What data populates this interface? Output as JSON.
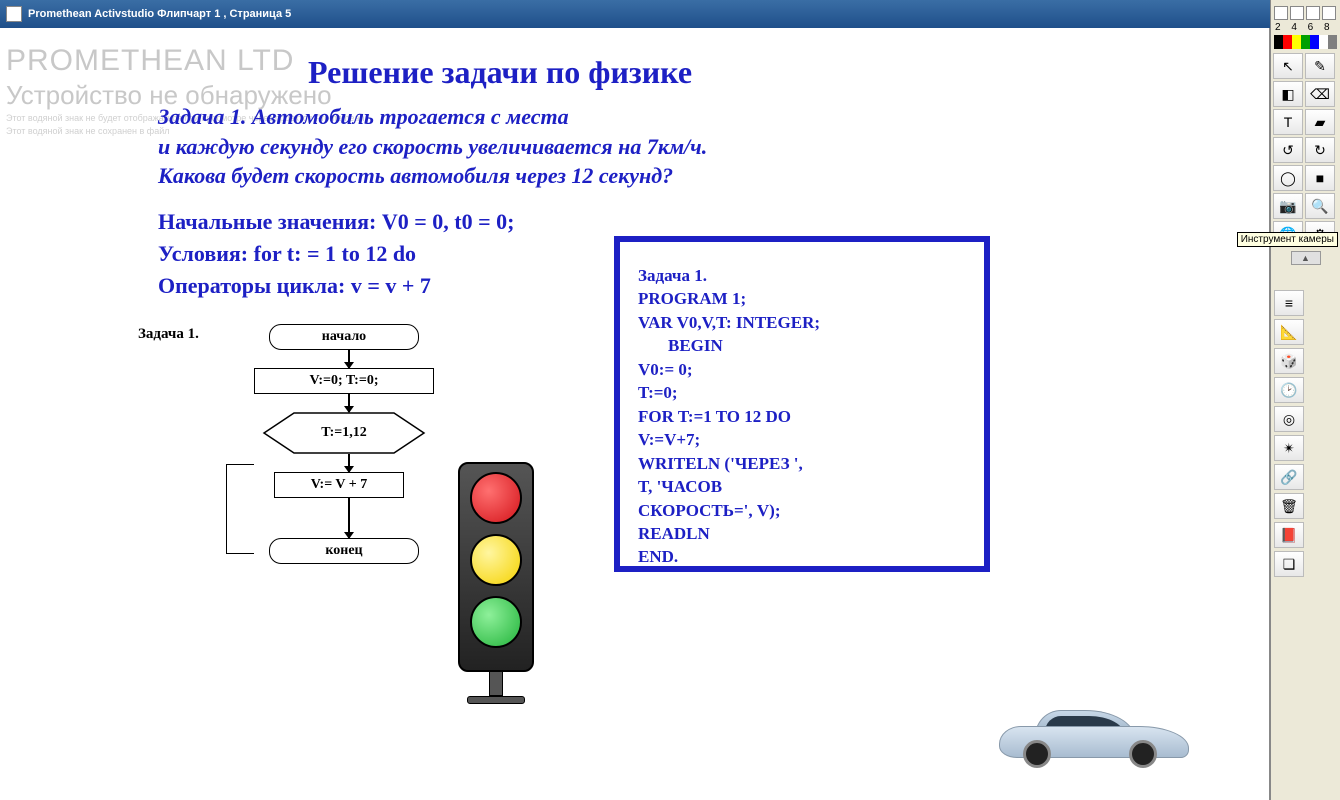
{
  "titlebar": {
    "text": "Promethean Activstudio   Флипчарт 1 ,  Страница 5"
  },
  "watermark": {
    "line1": "PROMETHEAN LTD",
    "line2": "Устройство не обнаружено",
    "line3": "Этот водяной знак не будет отображаться при просмотре через проектор Promethean",
    "line4": "Этот водяной знак не сохранен в файл"
  },
  "page": {
    "title": "Решение задачи по физике",
    "problem_l1": "Задача 1. Автомобиль трогается с места",
    "problem_l2": "и каждую секунду его скорость увеличивается на 7км/ч.",
    "problem_l3": "Какова будет скорость автомобиля через 12 секунд?",
    "defs_l1": "Начальные значения: V0 = 0, t0 = 0;",
    "defs_l2": "Условия: for t: = 1 to 12 do",
    "defs_l3": "Операторы цикла: v = v + 7",
    "task_label": "Задача 1."
  },
  "flowchart": {
    "start": "начало",
    "init": "V:=0; T:=0;",
    "cond": "T:=1,12",
    "body": "V:= V + 7",
    "end": "конец",
    "box_border": "#000000",
    "arrow_len": 18
  },
  "code": {
    "l1": "Задача 1.",
    "l2": "PROGRAM 1;",
    "l3": "VAR V0,V,T: INTEGER;",
    "l4": "BEGIN",
    "l5": "V0:= 0;",
    "l6": "T:=0;",
    "l7": "FOR T:=1 TO 12 DO",
    "l8": "V:=V+7;",
    "l9": "WRITELN ('ЧЕРЕЗ ',",
    "l10": "T, 'ЧАСОВ",
    "l11": "СКОРОСТЬ=', V);",
    "l12": "READLN",
    "l13": "END.",
    "border_color": "#1d20c4"
  },
  "traffic": {
    "red": "#d4141a",
    "yellow": "#f5d200",
    "green": "#22b33a"
  },
  "toolbox": {
    "palette_nums": "2 4 6 8",
    "palette_colors": [
      "#000000",
      "#ff0000",
      "#ffff00",
      "#00a000",
      "#0000ff",
      "#ffffff",
      "#808080"
    ],
    "tooltip": "Инструмент камеры",
    "icons": {
      "pointer": "↖",
      "pen": "✎",
      "hi": "◧",
      "erase": "⌫",
      "text": "T",
      "fill": "▰",
      "undo": "↺",
      "redo": "↻",
      "shape": "◯",
      "box": "■",
      "cam": "📷",
      "zoom": "🔍",
      "world": "🌐",
      "gear": "⚙",
      "ruler": "📐",
      "stack": "≡",
      "dice": "🎲",
      "clock": "🕑",
      "target": "◎",
      "stamp": "✴",
      "link": "🔗",
      "trash": "🗑",
      "book": "📕",
      "cube": "❏"
    }
  }
}
